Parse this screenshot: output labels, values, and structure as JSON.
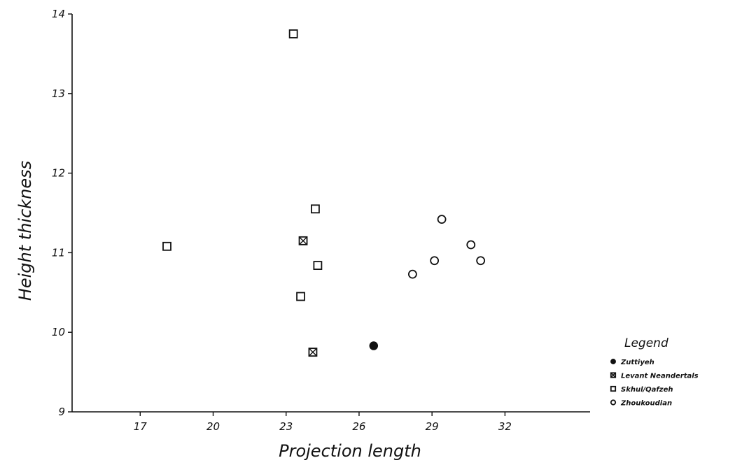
{
  "chart_data": {
    "type": "scatter",
    "xlabel": "Projection length",
    "ylabel": "Height thickness",
    "xlim": [
      14.2,
      35.5
    ],
    "ylim": [
      9,
      14
    ],
    "x_ticks": [
      17,
      20,
      23,
      26,
      29,
      32
    ],
    "x_tick_labels": [
      "17",
      "20",
      "23",
      "26",
      "29",
      "32"
    ],
    "y_ticks": [
      9,
      10,
      11,
      12,
      13,
      14
    ],
    "y_tick_labels": [
      "9",
      "10",
      "11",
      "12",
      "13",
      "14"
    ],
    "grid": false,
    "legend_title": "Legend",
    "legend_position": "right",
    "series": [
      {
        "name": "Zuttiyeh",
        "marker": "filled-circle",
        "points": [
          {
            "x": 26.6,
            "y": 9.83
          }
        ]
      },
      {
        "name": "Levant Neandertals",
        "marker": "crossed-square",
        "points": [
          {
            "x": 23.7,
            "y": 11.15
          },
          {
            "x": 24.1,
            "y": 9.75
          }
        ]
      },
      {
        "name": "Skhul/Qafzeh",
        "marker": "open-square",
        "points": [
          {
            "x": 18.1,
            "y": 11.08
          },
          {
            "x": 23.3,
            "y": 13.75
          },
          {
            "x": 24.2,
            "y": 11.55
          },
          {
            "x": 24.3,
            "y": 10.84
          },
          {
            "x": 23.6,
            "y": 10.45
          }
        ]
      },
      {
        "name": "Zhoukoudian",
        "marker": "open-circle",
        "points": [
          {
            "x": 28.2,
            "y": 10.73
          },
          {
            "x": 29.1,
            "y": 10.9
          },
          {
            "x": 29.4,
            "y": 11.42
          },
          {
            "x": 30.6,
            "y": 11.1
          },
          {
            "x": 31.0,
            "y": 10.9
          }
        ]
      }
    ]
  }
}
